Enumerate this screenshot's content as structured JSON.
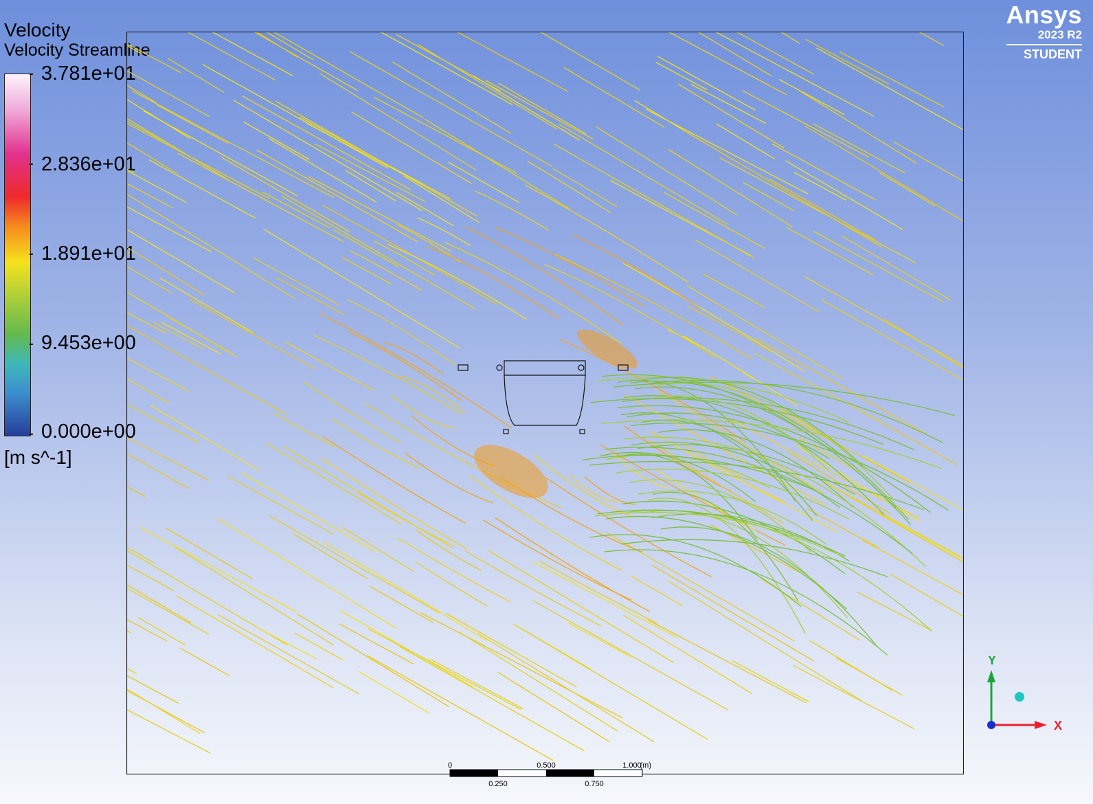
{
  "legend": {
    "title": "Velocity",
    "subtitle": "Velocity Streamline",
    "ticks": [
      "3.781e+01",
      "2.836e+01",
      "1.891e+01",
      "9.453e+00",
      "0.000e+00"
    ],
    "unit": "[m s^-1]",
    "colormap": [
      "#fdf4fb",
      "#e2318f",
      "#ee2a2a",
      "#f58a1f",
      "#f6e21c",
      "#63b94d",
      "#3fb8b7",
      "#263e99"
    ]
  },
  "logo": {
    "brand": "Ansys",
    "version": "2023 R2",
    "edition": "STUDENT"
  },
  "scale": {
    "top_labels": [
      "0",
      "0.500",
      "1.000",
      "(m)"
    ],
    "bottom_labels": [
      "0.250",
      "0.750"
    ]
  },
  "axes": {
    "x_label": "X",
    "y_label": "Y",
    "x_color": "#e8222a",
    "y_color": "#1fa33a",
    "z_color": "#1b2fd0"
  },
  "colors": {
    "background_top": "#6e8fdc",
    "background_bottom": "#f6f8fc",
    "streamline_main": "#e8d81c"
  }
}
